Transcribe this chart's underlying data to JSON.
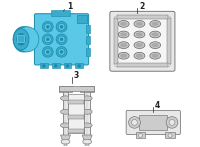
{
  "bg_color": "#ffffff",
  "blue": "#5bc8e8",
  "blue_mid": "#3aabcc",
  "blue_dark": "#1a8aaa",
  "blue_light": "#8adcf0",
  "gray_outline": "#666666",
  "gray_fill": "#e8e8e8",
  "gray_mid": "#cccccc",
  "gray_dark": "#aaaaaa",
  "label_color": "#222222",
  "label_fs": 5.5,
  "items": [
    "1",
    "2",
    "3",
    "4"
  ]
}
